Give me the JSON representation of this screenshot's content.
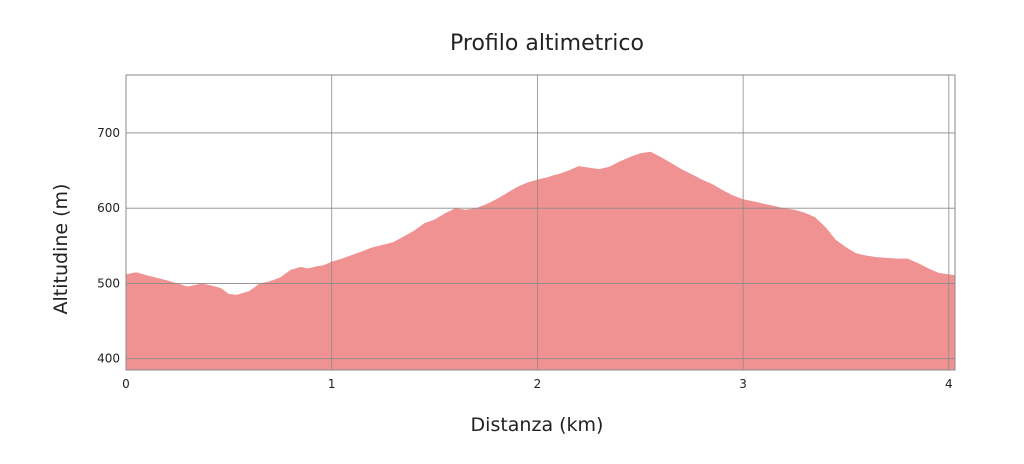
{
  "chart_data": {
    "type": "area",
    "title": "Profilo altimetrico",
    "xlabel": "Distanza (km)",
    "ylabel": "Altitudine (m)",
    "xlim": [
      0,
      4.03
    ],
    "ylim": [
      385,
      777
    ],
    "xticks": [
      0,
      1,
      2,
      3,
      4
    ],
    "yticks": [
      400,
      500,
      600,
      700
    ],
    "grid": true,
    "fill_color": "#f09291",
    "series": [
      {
        "x": [
          0,
          0.05,
          0.1,
          0.2,
          0.3,
          0.37,
          0.42,
          0.46,
          0.5,
          0.54,
          0.6,
          0.65,
          0.7,
          0.75,
          0.8,
          0.85,
          0.88,
          0.9,
          0.93,
          0.96,
          1.0,
          1.05,
          1.1,
          1.15,
          1.2,
          1.3,
          1.4,
          1.45,
          1.5,
          1.55,
          1.6,
          1.65,
          1.7,
          1.75,
          1.8,
          1.85,
          1.9,
          1.95,
          2.0,
          2.05,
          2.08,
          2.1,
          2.15,
          2.2,
          2.25,
          2.3,
          2.35,
          2.4,
          2.45,
          2.5,
          2.55,
          2.6,
          2.65,
          2.7,
          2.75,
          2.8,
          2.85,
          2.9,
          2.95,
          3.0,
          3.05,
          3.1,
          3.15,
          3.2,
          3.25,
          3.3,
          3.35,
          3.4,
          3.45,
          3.5,
          3.55,
          3.6,
          3.65,
          3.7,
          3.75,
          3.8,
          3.85,
          3.9,
          3.95,
          4.0,
          4.03
        ],
        "y": [
          512,
          515,
          511,
          504,
          496,
          500,
          497,
          494,
          486,
          485,
          490,
          500,
          503,
          508,
          518,
          522,
          520,
          521,
          523,
          524,
          529,
          533,
          538,
          543,
          548,
          555,
          570,
          580,
          585,
          593,
          600,
          598,
          600,
          605,
          612,
          620,
          628,
          634,
          638,
          641,
          644,
          645,
          650,
          656,
          654,
          652,
          655,
          662,
          668,
          673,
          675,
          668,
          660,
          652,
          645,
          638,
          632,
          624,
          617,
          612,
          609,
          606,
          603,
          600,
          598,
          594,
          588,
          575,
          558,
          548,
          540,
          537,
          535,
          534,
          533,
          533,
          527,
          520,
          514,
          512,
          511
        ]
      }
    ]
  }
}
